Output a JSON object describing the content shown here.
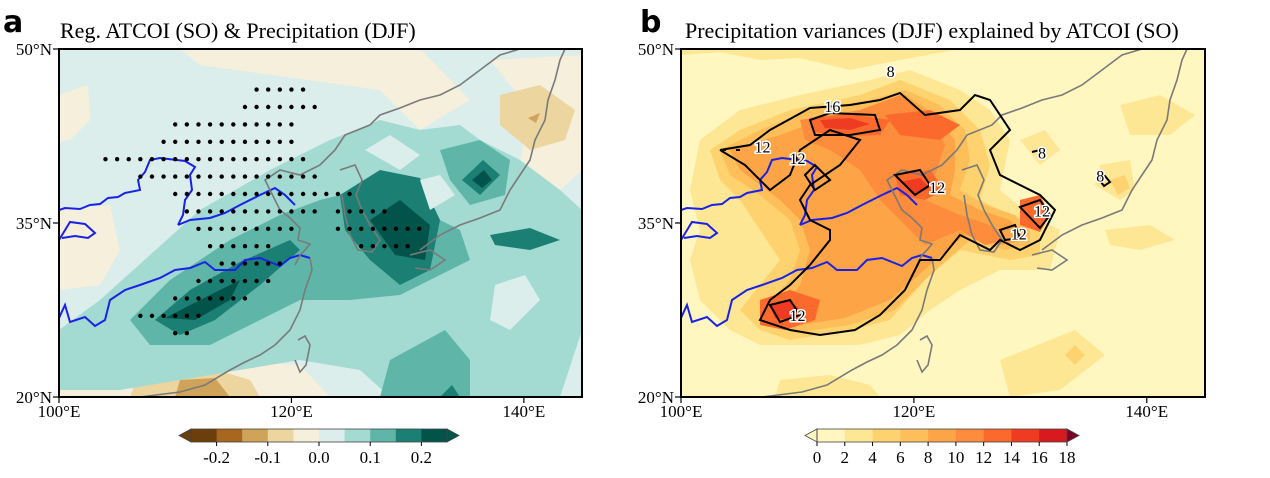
{
  "chart_data": [
    {
      "type": "heatmap",
      "panel_letter": "a",
      "title": "Reg. ATCOI (SO) & Precipitation (DJF)",
      "xlabel": "",
      "ylabel": "",
      "xlim": [
        100,
        145
      ],
      "ylim": [
        20,
        50
      ],
      "xticks": [
        100,
        120,
        140
      ],
      "xtick_labels": [
        "100°E",
        "120°E",
        "140°E"
      ],
      "yticks": [
        20,
        35,
        50
      ],
      "ytick_labels": [
        "20°N",
        "35°N",
        "50°N"
      ],
      "colorbar": {
        "levels": [
          -0.25,
          -0.2,
          -0.15,
          -0.1,
          -0.05,
          0.0,
          0.05,
          0.1,
          0.15,
          0.2,
          0.25
        ],
        "tick_values": [
          -0.2,
          -0.1,
          0.0,
          0.1,
          0.2
        ],
        "tick_labels": [
          "-0.2",
          "-0.1",
          "0.0",
          "0.1",
          "0.2"
        ],
        "colors": [
          "#6b3e0c",
          "#a7671f",
          "#d0a35a",
          "#ecd59e",
          "#f6efdc",
          "#dbeeec",
          "#a3dad1",
          "#5fb6a8",
          "#1c7f74",
          "#02544a"
        ],
        "extend": "both",
        "placement": "bottom"
      },
      "features": {
        "stippling": "significant regression over North China Plain, Yangtze basin, Korea and southern Japan",
        "max_centers": [
          {
            "lon": 111,
            "lat": 27,
            "value_bin": "> 0.2"
          },
          {
            "lon": 129,
            "lat": 34,
            "value_bin": "> 0.2"
          },
          {
            "lon": 136,
            "lat": 39,
            "value_bin": "> 0.2"
          },
          {
            "lon": 136,
            "lat": 33,
            "value_bin": "0.15-0.2"
          },
          {
            "lon": 134,
            "lat": 22,
            "value_bin": "0.1-0.15"
          }
        ],
        "min_centers": [
          {
            "lon": 138,
            "lat": 45,
            "value_bin": "-0.05 - -0.1"
          },
          {
            "lon": 113,
            "lat": 20,
            "value_bin": "-0.1 - -0.15"
          }
        ]
      }
    },
    {
      "type": "heatmap",
      "panel_letter": "b",
      "title": "Precipitation variances (DJF) explained by ATCOI (SO)",
      "xlabel": "",
      "ylabel": "",
      "xlim": [
        100,
        145
      ],
      "ylim": [
        20,
        50
      ],
      "xticks": [
        100,
        120,
        140
      ],
      "xtick_labels": [
        "100°E",
        "120°E",
        "140°E"
      ],
      "yticks": [
        20,
        35,
        50
      ],
      "ytick_labels": [
        "20°N",
        "35°N",
        "50°N"
      ],
      "colorbar": {
        "levels": [
          0,
          2,
          4,
          6,
          8,
          10,
          12,
          14,
          16,
          18
        ],
        "tick_values": [
          0,
          2,
          4,
          6,
          8,
          10,
          12,
          14,
          16,
          18
        ],
        "tick_labels": [
          "0",
          "2",
          "4",
          "6",
          "8",
          "10",
          "12",
          "14",
          "16",
          "18"
        ],
        "colors": [
          "#fff6c0",
          "#fee794",
          "#fed26e",
          "#febf5a",
          "#fda446",
          "#fd8c3c",
          "#fb6a2c",
          "#f03b23",
          "#d8191e"
        ],
        "over_color": "#800026",
        "extend": "both",
        "placement": "bottom"
      },
      "contour_labels": [
        {
          "text": "8",
          "lon": 118,
          "lat": 48
        },
        {
          "text": "16",
          "lon": 113,
          "lat": 45
        },
        {
          "text": "12",
          "lon": 107,
          "lat": 41.5
        },
        {
          "text": "12",
          "lon": 110,
          "lat": 40.5
        },
        {
          "text": "12",
          "lon": 122,
          "lat": 38
        },
        {
          "text": "12",
          "lon": 131,
          "lat": 36
        },
        {
          "text": "12",
          "lon": 129,
          "lat": 34
        },
        {
          "text": "8",
          "lon": 131,
          "lat": 41
        },
        {
          "text": "8",
          "lon": 136,
          "lat": 39
        },
        {
          "text": "12",
          "lon": 110,
          "lat": 27
        }
      ]
    }
  ]
}
